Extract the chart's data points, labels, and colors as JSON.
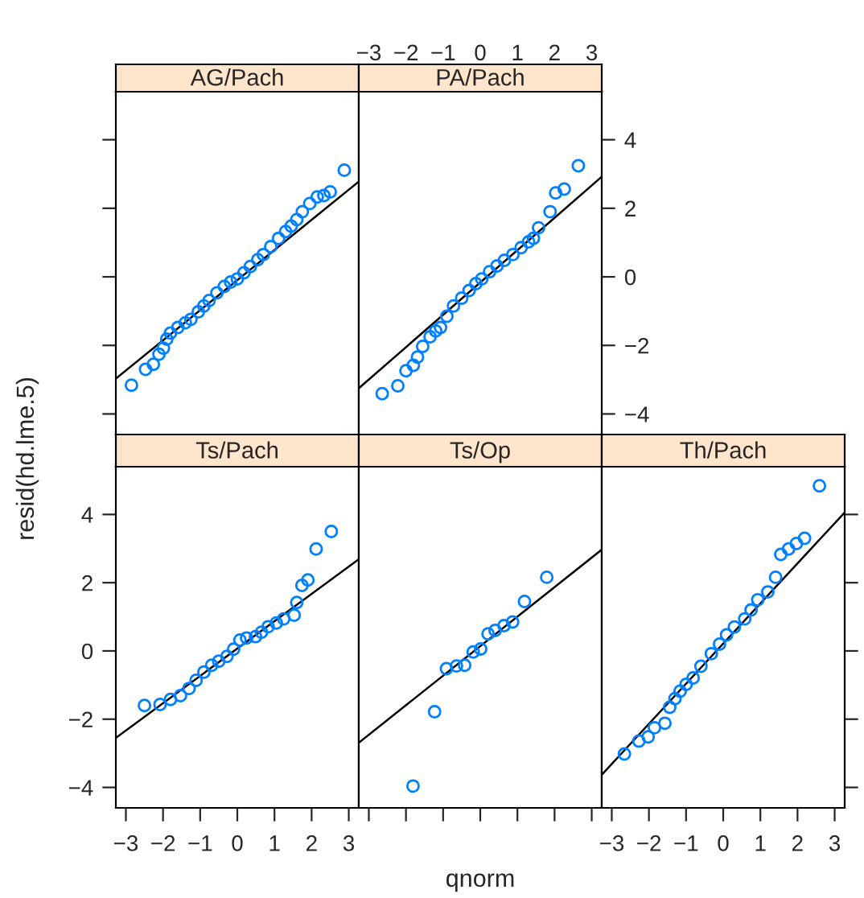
{
  "chart_data": [
    {
      "type": "scatter",
      "title": "AG/Pach",
      "xlim": [
        -3.27,
        3.27
      ],
      "ylim": [
        -4.6,
        5.4
      ],
      "xticks": [
        {
          "value": -3,
          "label": null
        },
        {
          "value": -2,
          "label": null
        },
        {
          "value": -1,
          "label": null
        },
        {
          "value": 0,
          "label": null
        },
        {
          "value": 1,
          "label": null
        },
        {
          "value": 2,
          "label": null
        },
        {
          "value": 3,
          "label": null
        }
      ],
      "yticks": [
        {
          "value": -4,
          "label": null
        },
        {
          "value": -2,
          "label": null
        },
        {
          "value": 0,
          "label": null
        },
        {
          "value": 2,
          "label": null
        },
        {
          "value": 4,
          "label": null
        }
      ],
      "tick_labels": false,
      "series": [
        {
          "marker": "circle",
          "color": "#0080ff",
          "x": [
            -2.85,
            -2.47,
            -2.26,
            -2.11,
            -1.99,
            -1.9,
            -1.8,
            -1.6,
            -1.4,
            -1.25,
            -1.05,
            -0.9,
            -0.76,
            -0.55,
            -0.35,
            -0.18,
            0.0,
            0.18,
            0.35,
            0.55,
            0.7,
            0.9,
            1.11,
            1.3,
            1.45,
            1.6,
            1.75,
            1.95,
            2.15,
            2.33,
            2.5,
            2.88
          ],
          "values": [
            -3.16,
            -2.7,
            -2.55,
            -2.26,
            -2.08,
            -1.82,
            -1.64,
            -1.48,
            -1.34,
            -1.24,
            -1.02,
            -0.85,
            -0.69,
            -0.47,
            -0.28,
            -0.15,
            -0.06,
            0.12,
            0.3,
            0.5,
            0.65,
            0.88,
            1.12,
            1.32,
            1.48,
            1.67,
            1.9,
            2.14,
            2.33,
            2.37,
            2.48,
            3.11
          ]
        },
        {
          "type": "line",
          "color": "#000000",
          "x": [
            -3.27,
            3.27
          ],
          "values": [
            -2.97,
            2.78
          ]
        }
      ]
    },
    {
      "type": "scatter",
      "title": "PA/Pach",
      "xlim": [
        -3.27,
        3.27
      ],
      "ylim": [
        -4.6,
        5.4
      ],
      "xticks": [
        -3,
        -2,
        -1,
        0,
        1,
        2,
        3
      ],
      "yticks": [
        -4,
        -2,
        0,
        2,
        4
      ],
      "series": [
        {
          "marker": "circle",
          "color": "#0080ff",
          "x": [
            -2.64,
            -2.22,
            -2.0,
            -1.8,
            -1.69,
            -1.55,
            -1.35,
            -1.2,
            -1.07,
            -0.9,
            -0.72,
            -0.5,
            -0.3,
            -0.12,
            0.04,
            0.25,
            0.45,
            0.65,
            0.88,
            1.1,
            1.3,
            1.43,
            1.57,
            1.88,
            2.03,
            2.26,
            2.64
          ],
          "values": [
            -3.41,
            -3.18,
            -2.74,
            -2.58,
            -2.34,
            -2.03,
            -1.75,
            -1.58,
            -1.48,
            -1.15,
            -0.85,
            -0.62,
            -0.4,
            -0.2,
            -0.06,
            0.15,
            0.32,
            0.48,
            0.65,
            0.85,
            1.02,
            1.12,
            1.43,
            1.9,
            2.45,
            2.56,
            3.24
          ]
        },
        {
          "type": "line",
          "color": "#000000",
          "x": [
            -3.27,
            3.27
          ],
          "values": [
            -3.25,
            2.92
          ]
        }
      ]
    },
    {
      "type": "scatter",
      "title": "Ts/Pach",
      "ylabel": "resid(hd.lme.5)",
      "xlim": [
        -3.27,
        3.27
      ],
      "ylim": [
        -4.6,
        5.4
      ],
      "xticks": [
        -3,
        -2,
        -1,
        0,
        1,
        2,
        3
      ],
      "yticks": [
        -4,
        -2,
        0,
        2,
        4
      ],
      "series": [
        {
          "marker": "circle",
          "color": "#0080ff",
          "x": [
            -2.5,
            -2.08,
            -1.8,
            -1.53,
            -1.3,
            -1.11,
            -0.9,
            -0.69,
            -0.5,
            -0.28,
            -0.1,
            0.07,
            0.25,
            0.49,
            0.65,
            0.83,
            1.05,
            1.25,
            1.53,
            1.6,
            1.74,
            1.9,
            2.12,
            2.53
          ],
          "values": [
            -1.6,
            -1.57,
            -1.42,
            -1.31,
            -1.1,
            -0.86,
            -0.62,
            -0.42,
            -0.3,
            -0.16,
            0.05,
            0.32,
            0.38,
            0.42,
            0.55,
            0.71,
            0.82,
            0.94,
            1.05,
            1.42,
            1.92,
            2.08,
            2.99,
            3.5
          ]
        },
        {
          "type": "line",
          "color": "#000000",
          "x": [
            -3.27,
            3.27
          ],
          "values": [
            -2.55,
            2.69
          ]
        }
      ]
    },
    {
      "type": "scatter",
      "title": "Ts/Op",
      "xlabel": "qnorm",
      "xlim": [
        -3.27,
        3.27
      ],
      "ylim": [
        -4.6,
        5.4
      ],
      "xticks": [
        {
          "value": -3,
          "label": null
        },
        {
          "value": -2,
          "label": null
        },
        {
          "value": -1,
          "label": null
        },
        {
          "value": 0,
          "label": null
        },
        {
          "value": 1,
          "label": null
        },
        {
          "value": 2,
          "label": null
        },
        {
          "value": 3,
          "label": null
        }
      ],
      "tick_labels": false,
      "series": [
        {
          "marker": "circle",
          "color": "#0080ff",
          "x": [
            -1.81,
            -1.23,
            -0.91,
            -0.64,
            -0.42,
            -0.19,
            0.01,
            0.21,
            0.4,
            0.64,
            0.87,
            1.19,
            1.79
          ],
          "values": [
            -3.96,
            -1.78,
            -0.52,
            -0.44,
            -0.42,
            -0.03,
            0.06,
            0.5,
            0.6,
            0.74,
            0.85,
            1.45,
            2.16
          ]
        },
        {
          "type": "line",
          "color": "#000000",
          "x": [
            -3.27,
            3.27
          ],
          "values": [
            -2.69,
            2.97
          ]
        }
      ]
    },
    {
      "type": "scatter",
      "title": "Th/Pach",
      "xlim": [
        -3.27,
        3.27
      ],
      "ylim": [
        -4.6,
        5.4
      ],
      "xticks": [
        -3,
        -2,
        -1,
        0,
        1,
        2,
        3
      ],
      "yticks": [
        {
          "value": -4,
          "label": null
        },
        {
          "value": -2,
          "label": null
        },
        {
          "value": 0,
          "label": null
        },
        {
          "value": 2,
          "label": null
        },
        {
          "value": 4,
          "label": null
        }
      ],
      "tick_labels": "x",
      "series": [
        {
          "marker": "circle",
          "color": "#0080ff",
          "x": [
            -2.66,
            -2.27,
            -2.02,
            -1.85,
            -1.57,
            -1.44,
            -1.3,
            -1.16,
            -1.0,
            -0.81,
            -0.6,
            -0.32,
            -0.1,
            0.09,
            0.3,
            0.58,
            0.75,
            0.93,
            1.2,
            1.41,
            1.55,
            1.76,
            1.97,
            2.19,
            2.59
          ],
          "values": [
            -3.02,
            -2.64,
            -2.52,
            -2.25,
            -2.12,
            -1.65,
            -1.4,
            -1.18,
            -0.98,
            -0.79,
            -0.45,
            -0.08,
            0.2,
            0.47,
            0.7,
            0.94,
            1.2,
            1.5,
            1.73,
            2.16,
            2.83,
            2.99,
            3.15,
            3.3,
            4.84
          ]
        },
        {
          "type": "line",
          "color": "#000000",
          "x": [
            -3.27,
            3.27
          ],
          "values": [
            -3.63,
            4.06
          ]
        }
      ]
    }
  ]
}
